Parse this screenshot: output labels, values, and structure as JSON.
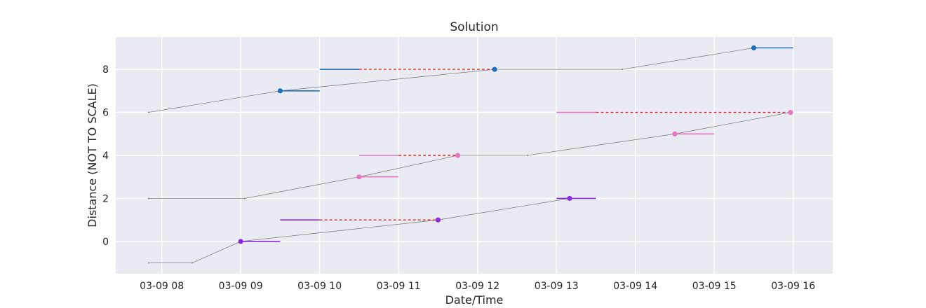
{
  "chart_data": {
    "type": "line",
    "title": "Solution",
    "xlabel": "Date/Time",
    "ylabel": "Distance (NOT TO SCALE)",
    "xlim": [
      "03-09 07:25",
      "03-09 16:30"
    ],
    "ylim": [
      -1.5,
      9.5
    ],
    "x_ticks": [
      "03-09 08",
      "03-09 09",
      "03-09 10",
      "03-09 11",
      "03-09 12",
      "03-09 13",
      "03-09 14",
      "03-09 15",
      "03-09 16"
    ],
    "y_ticks": [
      0,
      2,
      4,
      6,
      8
    ],
    "grid": true,
    "colors": {
      "background": "#eaeaf2",
      "grid": "#ffffff",
      "path": "#808080",
      "blue": "#1f6fbf",
      "pink": "#e377c2",
      "purple": "#8a2be2",
      "wait": "#d62728"
    },
    "paths": [
      {
        "color": "blue",
        "points": [
          [
            "03-09 07:50",
            6
          ],
          [
            "03-09 09:30",
            7
          ],
          [
            "03-09 12:13",
            8
          ],
          [
            "03-09 13:50",
            8
          ],
          [
            "03-09 15:30",
            9
          ]
        ]
      },
      {
        "color": "pink",
        "points": [
          [
            "03-09 07:50",
            2
          ],
          [
            "03-09 09:03",
            2
          ],
          [
            "03-09 10:30",
            3
          ],
          [
            "03-09 11:45",
            4
          ],
          [
            "03-09 12:38",
            4
          ],
          [
            "03-09 14:30",
            5
          ],
          [
            "03-09 15:58",
            6
          ]
        ]
      },
      {
        "color": "purple",
        "points": [
          [
            "03-09 07:50",
            -1
          ],
          [
            "03-09 08:23",
            -1
          ],
          [
            "03-09 09:00",
            0
          ],
          [
            "03-09 11:30",
            1
          ],
          [
            "03-09 13:10",
            2
          ]
        ]
      }
    ],
    "windows": [
      {
        "color": "blue",
        "y": 7,
        "start": "03-09 09:30",
        "end": "03-09 10:00"
      },
      {
        "color": "blue",
        "y": 8,
        "start": "03-09 10:00",
        "end": "03-09 10:30",
        "wait_end": "03-09 12:13"
      },
      {
        "color": "blue",
        "y": 9,
        "start": "03-09 15:30",
        "end": "03-09 16:00"
      },
      {
        "color": "pink",
        "y": 3,
        "start": "03-09 10:30",
        "end": "03-09 11:00"
      },
      {
        "color": "pink",
        "y": 4,
        "start": "03-09 10:30",
        "end": "03-09 11:00",
        "wait_end": "03-09 11:45"
      },
      {
        "color": "pink",
        "y": 5,
        "start": "03-09 14:30",
        "end": "03-09 15:00"
      },
      {
        "color": "pink",
        "y": 6,
        "start": "03-09 13:00",
        "end": "03-09 13:30",
        "wait_end": "03-09 15:58"
      },
      {
        "color": "purple",
        "y": 0,
        "start": "03-09 09:00",
        "end": "03-09 09:30"
      },
      {
        "color": "purple",
        "y": 1,
        "start": "03-09 09:30",
        "end": "03-09 10:00",
        "wait_end": "03-09 11:30"
      },
      {
        "color": "purple",
        "y": 2,
        "start": "03-09 13:00",
        "end": "03-09 13:30"
      }
    ],
    "visits": [
      {
        "color": "blue",
        "x": "03-09 09:30",
        "y": 7
      },
      {
        "color": "blue",
        "x": "03-09 12:13",
        "y": 8
      },
      {
        "color": "blue",
        "x": "03-09 15:30",
        "y": 9
      },
      {
        "color": "pink",
        "x": "03-09 10:30",
        "y": 3
      },
      {
        "color": "pink",
        "x": "03-09 11:45",
        "y": 4
      },
      {
        "color": "pink",
        "x": "03-09 14:30",
        "y": 5
      },
      {
        "color": "pink",
        "x": "03-09 15:58",
        "y": 6
      },
      {
        "color": "purple",
        "x": "03-09 09:00",
        "y": 0
      },
      {
        "color": "purple",
        "x": "03-09 11:30",
        "y": 1
      },
      {
        "color": "purple",
        "x": "03-09 13:10",
        "y": 2
      }
    ]
  }
}
